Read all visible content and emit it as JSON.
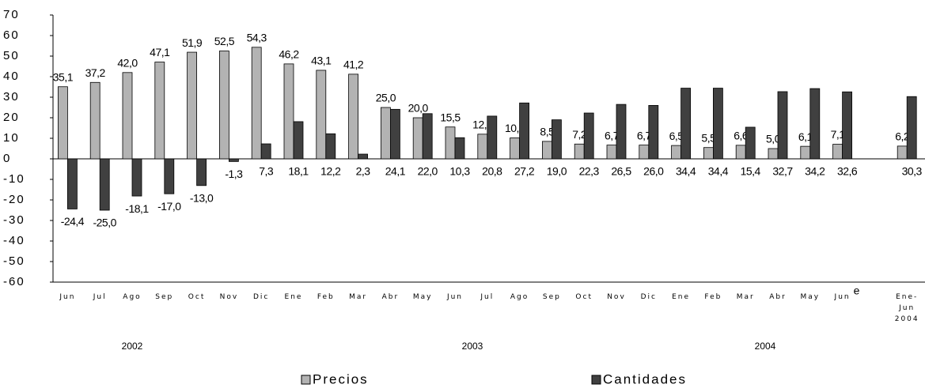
{
  "chart_data": {
    "type": "bar",
    "categories": [
      "Jun",
      "Jul",
      "Ago",
      "Sep",
      "Oct",
      "Nov",
      "Dic",
      "Ene",
      "Feb",
      "Mar",
      "Abr",
      "May",
      "Jun",
      "Jul",
      "Ago",
      "Sep",
      "Oct",
      "Nov",
      "Dic",
      "Ene",
      "Feb",
      "Mar",
      "Abr",
      "May",
      "Jun",
      null,
      "Ene-Jun 2004"
    ],
    "annotations": [
      {
        "text": "e"
      }
    ],
    "x_group_labels": [
      "2002",
      "2003",
      "2004"
    ],
    "series": [
      {
        "name": "Precios",
        "color": "#b3b3b3",
        "values": [
          35.1,
          37.2,
          42.0,
          47.1,
          51.9,
          52.5,
          54.3,
          46.2,
          43.1,
          41.2,
          25.0,
          20.0,
          15.5,
          12.0,
          10.2,
          8.5,
          7.2,
          6.7,
          6.7,
          6.5,
          5.5,
          6.6,
          5.0,
          6.1,
          7.1,
          null,
          6.2
        ],
        "value_labels": [
          "35,1",
          "37,2",
          "42,0",
          "47,1",
          "51,9",
          "52,5",
          "54,3",
          "46,2",
          "43,1",
          "41,2",
          "25,0",
          "20,0",
          "15,5",
          "12,0",
          "10,2",
          "8,5",
          "7,2",
          "6,7",
          "6,7",
          "6,5",
          "5,5",
          "6,6",
          "5,0",
          "6,1",
          "7,1",
          null,
          "6,2"
        ]
      },
      {
        "name": "Cantidades",
        "color": "#404040",
        "values": [
          -24.4,
          -25.0,
          -18.1,
          -17.0,
          -13.0,
          -1.3,
          7.3,
          18.1,
          12.2,
          2.3,
          24.1,
          22.0,
          10.3,
          20.8,
          27.2,
          19.0,
          22.3,
          26.5,
          26.0,
          34.4,
          34.4,
          15.4,
          32.7,
          34.2,
          32.6,
          null,
          30.3
        ],
        "value_labels": [
          "-24,4",
          "-25,0",
          "-18,1",
          "-17,0",
          "-13,0",
          "-1,3",
          "7,3",
          "18,1",
          "12,2",
          "2,3",
          "24,1",
          "22,0",
          "10,3",
          "20,8",
          "27,2",
          "19,0",
          "22,3",
          "26,5",
          "26,0",
          "34,4",
          "34,4",
          "15,4",
          "32,7",
          "34,2",
          "32,6",
          null,
          "30,3"
        ]
      }
    ],
    "ylim": [
      -60,
      70
    ],
    "yticks": [
      -60,
      -50,
      -40,
      -30,
      -20,
      -10,
      0,
      10,
      20,
      30,
      40,
      50,
      60,
      70
    ],
    "legend": "bottom"
  }
}
